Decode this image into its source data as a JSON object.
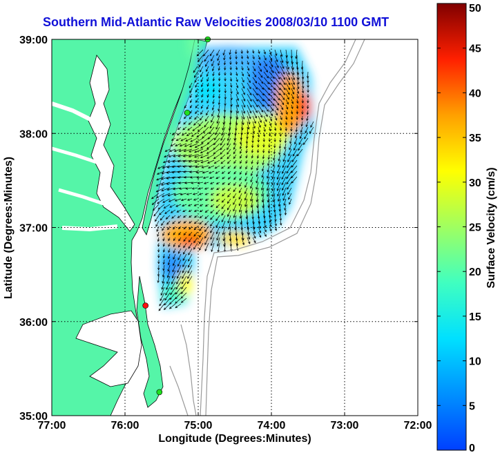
{
  "title": "Southern Mid-Atlantic Raw Velocities 2008/03/10 1100 GMT",
  "xlabel": "Longitude (Degrees:Minutes)",
  "ylabel": "Latitude (Degrees:Minutes)",
  "colorbar_label": "Surface Velocity (cm/s)",
  "x_ticks": [
    "77:00",
    "76:00",
    "75:00",
    "74:00",
    "73:00",
    "72:00"
  ],
  "y_ticks": [
    "39:00",
    "38:00",
    "37:00",
    "36:00",
    "35:00"
  ],
  "colorbar_ticks": [
    "50",
    "45",
    "40",
    "35",
    "30",
    "25",
    "20",
    "15",
    "10",
    "5",
    "0"
  ],
  "colors": {
    "land": "#55f5a8",
    "title": "#1010d8",
    "bathymetry": "#999999"
  },
  "chart_data": {
    "type": "heatmap",
    "title": "Southern Mid-Atlantic Raw Velocities 2008/03/10 1100 GMT",
    "xlabel": "Longitude (Degrees:Minutes)",
    "ylabel": "Latitude (Degrees:Minutes)",
    "xlim": [
      -77,
      -72
    ],
    "ylim": [
      35,
      39
    ],
    "grid": true,
    "colorbar": {
      "label": "Surface Velocity (cm/s)",
      "range": [
        0,
        50
      ]
    },
    "stations": [
      {
        "lon": -74.87,
        "lat": 39.0,
        "color": "green"
      },
      {
        "lon": -75.15,
        "lat": 38.22,
        "color": "green"
      },
      {
        "lon": -75.72,
        "lat": 36.17,
        "color": "red"
      },
      {
        "lon": -75.53,
        "lat": 35.25,
        "color": "green"
      }
    ]
  }
}
